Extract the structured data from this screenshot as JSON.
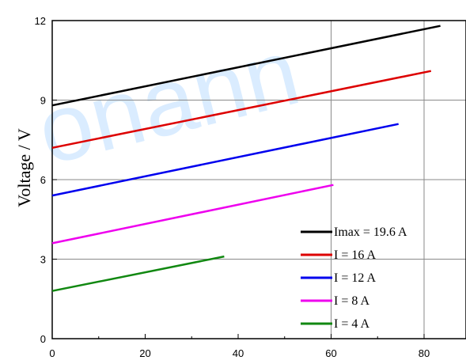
{
  "chart_data": {
    "type": "line",
    "xlabel": "",
    "ylabel": "Voltage / V",
    "xlim": [
      0,
      90
    ],
    "ylim": [
      0,
      12
    ],
    "xticks": [
      0,
      20,
      40,
      60,
      80
    ],
    "yticks": [
      0,
      3,
      6,
      9,
      12
    ],
    "grid": "partial",
    "legend_position": "bottom-right",
    "series": [
      {
        "name": "Imax = 19.6 A",
        "color": "#000000",
        "x": [
          0,
          83.5
        ],
        "y": [
          8.8,
          11.8
        ]
      },
      {
        "name": "I = 16 A",
        "color": "#dd0000",
        "x": [
          0,
          81.5
        ],
        "y": [
          7.2,
          10.1
        ]
      },
      {
        "name": "I = 12 A",
        "color": "#0000ee",
        "x": [
          0,
          74.5
        ],
        "y": [
          5.4,
          8.1
        ]
      },
      {
        "name": "I = 8 A",
        "color": "#ee00ee",
        "x": [
          0,
          60.5
        ],
        "y": [
          3.6,
          5.8
        ]
      },
      {
        "name": "I = 4 A",
        "color": "#118811",
        "x": [
          0,
          37
        ],
        "y": [
          1.8,
          3.1
        ]
      }
    ]
  },
  "watermark": "onann"
}
